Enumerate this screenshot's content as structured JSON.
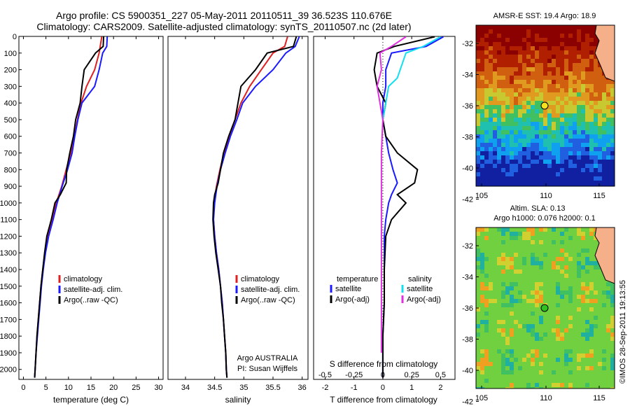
{
  "header": {
    "title_line1": "Argo profile: CS 5900351_227 05-May-2011 20110511_39 36.523S 110.676E",
    "title_line2": "Climatology: CARS2009. Satellite-adjusted climatology: synTS_20110507.nc (2d later)"
  },
  "colors": {
    "climatology": "#e02020",
    "satellite": "#1a1aff",
    "argo": "#000000",
    "sat_salinity": "#10e0f0",
    "argo_salinity": "#e030e0"
  },
  "chart_data": [
    {
      "type": "line",
      "xlabel": "temperature (deg C)",
      "xlim": [
        -1,
        31
      ],
      "xticks": [
        0,
        5,
        10,
        15,
        20,
        25,
        30
      ],
      "ylim": [
        0,
        2060
      ],
      "yticks": [
        0,
        100,
        200,
        300,
        400,
        500,
        600,
        700,
        800,
        900,
        1000,
        1100,
        1200,
        1300,
        1400,
        1500,
        1600,
        1700,
        1800,
        1900,
        2000
      ],
      "legend": [
        "climatology",
        "satellite-adj. clim.",
        "Argo(..raw -QC)"
      ],
      "series": [
        {
          "name": "climatology",
          "color": "#e02020",
          "points": [
            [
              17.4,
              2
            ],
            [
              16.8,
              100
            ],
            [
              15.8,
              200
            ],
            [
              14.0,
              300
            ],
            [
              12.8,
              400
            ],
            [
              12.0,
              500
            ],
            [
              11.3,
              600
            ],
            [
              10.5,
              700
            ],
            [
              9.5,
              800
            ],
            [
              8.5,
              900
            ],
            [
              7.3,
              1000
            ],
            [
              6.4,
              1100
            ],
            [
              5.4,
              1200
            ],
            [
              4.8,
              1300
            ],
            [
              4.3,
              1400
            ],
            [
              3.9,
              1500
            ],
            [
              3.6,
              1600
            ],
            [
              3.3,
              1700
            ],
            [
              3.0,
              1800
            ],
            [
              2.8,
              1900
            ],
            [
              2.6,
              2000
            ],
            [
              2.5,
              2050
            ]
          ]
        },
        {
          "name": "satellite-adj. clim.",
          "color": "#1a1aff",
          "points": [
            [
              18.6,
              2
            ],
            [
              18.5,
              60
            ],
            [
              17.6,
              100
            ],
            [
              16.8,
              200
            ],
            [
              15.8,
              300
            ],
            [
              13.0,
              400
            ],
            [
              12.1,
              500
            ],
            [
              11.4,
              600
            ],
            [
              10.8,
              700
            ],
            [
              9.8,
              800
            ],
            [
              8.6,
              900
            ],
            [
              7.5,
              1000
            ],
            [
              6.6,
              1100
            ],
            [
              5.6,
              1200
            ],
            [
              4.9,
              1300
            ],
            [
              4.4,
              1400
            ],
            [
              4.0,
              1500
            ],
            [
              3.7,
              1600
            ],
            [
              3.4,
              1700
            ],
            [
              3.1,
              1800
            ],
            [
              2.8,
              1900
            ],
            [
              2.6,
              2000
            ],
            [
              2.5,
              2050
            ]
          ]
        },
        {
          "name": "Argo(..raw -QC)",
          "color": "#000000",
          "points": [
            [
              17.8,
              2
            ],
            [
              17.7,
              60
            ],
            [
              16.0,
              100
            ],
            [
              13.5,
              200
            ],
            [
              13.0,
              300
            ],
            [
              12.6,
              400
            ],
            [
              11.6,
              500
            ],
            [
              11.1,
              600
            ],
            [
              10.3,
              700
            ],
            [
              9.6,
              800
            ],
            [
              9.5,
              880
            ],
            [
              8.2,
              950
            ],
            [
              7.0,
              1000
            ],
            [
              6.2,
              1100
            ],
            [
              5.2,
              1200
            ],
            [
              4.7,
              1300
            ],
            [
              4.3,
              1400
            ],
            [
              3.9,
              1500
            ],
            [
              3.6,
              1600
            ],
            [
              3.3,
              1700
            ],
            [
              3.0,
              1800
            ],
            [
              2.8,
              1900
            ],
            [
              2.6,
              2000
            ],
            [
              2.5,
              2050
            ]
          ]
        }
      ]
    },
    {
      "type": "line",
      "xlabel": "salinity",
      "xlim": [
        33.7,
        36.1
      ],
      "xticks": [
        34,
        34.5,
        35,
        35.5,
        36
      ],
      "ylim": [
        0,
        2060
      ],
      "legend": [
        "climatology",
        "satellite-adj. clim.",
        "Argo(..raw -QC)"
      ],
      "annotation_line1": "Argo AUSTRALIA",
      "annotation_line2": "PI: Susan Wijffels",
      "series": [
        {
          "name": "climatology",
          "color": "#e02020",
          "points": [
            [
              35.75,
              2
            ],
            [
              35.7,
              60
            ],
            [
              35.5,
              100
            ],
            [
              35.3,
              200
            ],
            [
              35.1,
              300
            ],
            [
              34.95,
              400
            ],
            [
              34.85,
              500
            ],
            [
              34.75,
              600
            ],
            [
              34.66,
              700
            ],
            [
              34.59,
              800
            ],
            [
              34.53,
              900
            ],
            [
              34.49,
              1000
            ],
            [
              34.48,
              1100
            ],
            [
              34.5,
              1200
            ],
            [
              34.53,
              1300
            ],
            [
              34.57,
              1400
            ],
            [
              34.6,
              1500
            ],
            [
              34.63,
              1600
            ],
            [
              34.65,
              1700
            ],
            [
              34.67,
              1800
            ],
            [
              34.69,
              1900
            ],
            [
              34.7,
              2000
            ],
            [
              34.71,
              2050
            ]
          ]
        },
        {
          "name": "satellite-adj. clim.",
          "color": "#1a1aff",
          "points": [
            [
              35.95,
              2
            ],
            [
              35.88,
              60
            ],
            [
              35.72,
              100
            ],
            [
              35.5,
              200
            ],
            [
              35.2,
              300
            ],
            [
              34.98,
              400
            ],
            [
              34.88,
              500
            ],
            [
              34.77,
              600
            ],
            [
              34.68,
              700
            ],
            [
              34.6,
              800
            ],
            [
              34.54,
              900
            ],
            [
              34.5,
              1000
            ],
            [
              34.48,
              1100
            ],
            [
              34.5,
              1200
            ],
            [
              34.53,
              1300
            ],
            [
              34.57,
              1400
            ],
            [
              34.6,
              1500
            ],
            [
              34.63,
              1600
            ],
            [
              34.65,
              1700
            ],
            [
              34.67,
              1800
            ],
            [
              34.69,
              1900
            ],
            [
              34.7,
              2000
            ],
            [
              34.71,
              2050
            ]
          ]
        },
        {
          "name": "Argo(..raw -QC)",
          "color": "#000000",
          "points": [
            [
              35.9,
              2
            ],
            [
              35.85,
              60
            ],
            [
              35.4,
              100
            ],
            [
              35.2,
              200
            ],
            [
              34.95,
              300
            ],
            [
              34.9,
              400
            ],
            [
              34.85,
              500
            ],
            [
              34.74,
              600
            ],
            [
              34.65,
              700
            ],
            [
              34.6,
              800
            ],
            [
              34.56,
              880
            ],
            [
              34.5,
              950
            ],
            [
              34.48,
              1000
            ],
            [
              34.47,
              1100
            ],
            [
              34.49,
              1200
            ],
            [
              34.52,
              1300
            ],
            [
              34.56,
              1400
            ],
            [
              34.6,
              1500
            ],
            [
              34.62,
              1600
            ],
            [
              34.65,
              1700
            ],
            [
              34.67,
              1800
            ],
            [
              34.69,
              1900
            ],
            [
              34.7,
              2000
            ],
            [
              34.71,
              2050
            ]
          ]
        }
      ]
    },
    {
      "type": "line",
      "xlabel_top": "S difference from climatology",
      "xlabel_bottom": "T difference from climatology",
      "xlim": [
        -2.4,
        2.5
      ],
      "xticks_T": [
        -2,
        -1,
        0,
        1,
        2
      ],
      "xticks_S": [
        "-0.5",
        "-0.25",
        "0",
        "0.25",
        "0.5"
      ],
      "legend_title_T": "temperature",
      "legend_title_S": "salinity",
      "legend": [
        "satellite",
        "Argo(-adj)",
        "satellite",
        "Argo(-adj)"
      ],
      "series": [
        {
          "name": "satellite",
          "group": "temperature",
          "color": "#1a1aff",
          "points": [
            [
              2.1,
              2
            ],
            [
              1.5,
              60
            ],
            [
              0.3,
              100
            ],
            [
              0.1,
              200
            ],
            [
              0.1,
              300
            ],
            [
              0.0,
              400
            ],
            [
              0.0,
              500
            ],
            [
              0.1,
              600
            ],
            [
              0.2,
              700
            ],
            [
              0.35,
              800
            ],
            [
              0.5,
              880
            ],
            [
              0.3,
              950
            ],
            [
              0.2,
              1000
            ],
            [
              0.1,
              1100
            ],
            [
              0.05,
              1200
            ],
            [
              0.05,
              1400
            ],
            [
              0.05,
              1600
            ],
            [
              0.0,
              1800
            ],
            [
              0.0,
              2000
            ],
            [
              0.0,
              2050
            ]
          ]
        },
        {
          "name": "Argo(-adj)",
          "group": "temperature",
          "color": "#000000",
          "points": [
            [
              1.8,
              2
            ],
            [
              0.4,
              60
            ],
            [
              -0.2,
              100
            ],
            [
              -0.3,
              200
            ],
            [
              -0.2,
              300
            ],
            [
              0.1,
              400
            ],
            [
              0.0,
              500
            ],
            [
              0.1,
              600
            ],
            [
              0.5,
              700
            ],
            [
              1.2,
              800
            ],
            [
              1.1,
              880
            ],
            [
              0.5,
              950
            ],
            [
              0.8,
              1000
            ],
            [
              0.3,
              1100
            ],
            [
              0.1,
              1200
            ],
            [
              0.05,
              1400
            ],
            [
              0.05,
              1600
            ],
            [
              0.0,
              1800
            ],
            [
              0.0,
              2000
            ],
            [
              0.0,
              2050
            ]
          ]
        },
        {
          "name": "satellite",
          "group": "salinity",
          "color": "#10e0f0",
          "points": [
            [
              2.0,
              2
            ],
            [
              1.4,
              60
            ],
            [
              0.8,
              100
            ],
            [
              0.6,
              200
            ],
            [
              0.5,
              250
            ],
            [
              0.2,
              300
            ],
            [
              0.1,
              400
            ],
            [
              0.0,
              500
            ]
          ]
        },
        {
          "name": "Argo(-adj)",
          "group": "salinity",
          "color": "#e030e0",
          "points": [
            [
              0.8,
              2
            ],
            [
              0.3,
              60
            ],
            [
              -0.1,
              100
            ],
            [
              -0.05,
              200
            ],
            [
              -0.2,
              300
            ],
            [
              -0.1,
              400
            ],
            [
              0.0,
              500
            ],
            [
              -0.05,
              700
            ],
            [
              -0.05,
              1000
            ],
            [
              -0.05,
              1500
            ],
            [
              -0.05,
              1900
            ]
          ]
        }
      ]
    }
  ],
  "maps": {
    "sst": {
      "title": "AMSR-E SST: 19.4 Argo: 18.9",
      "xticks": [
        "105",
        "110",
        "115"
      ],
      "yticks": [
        "-32",
        "-34",
        "-36",
        "-38",
        "-40",
        "-42"
      ]
    },
    "sla": {
      "title_line1": "Altim. SLA: 0.13",
      "title_line2": "Argo h1000: 0.076 h2000: 0.1",
      "xticks": [
        "105",
        "110",
        "115"
      ],
      "yticks": [
        "-32",
        "-34",
        "-36",
        "-38",
        "-40",
        "-42"
      ]
    }
  },
  "footer": {
    "credit": "©IMOS 28-Sep-2011 19:13:55"
  }
}
